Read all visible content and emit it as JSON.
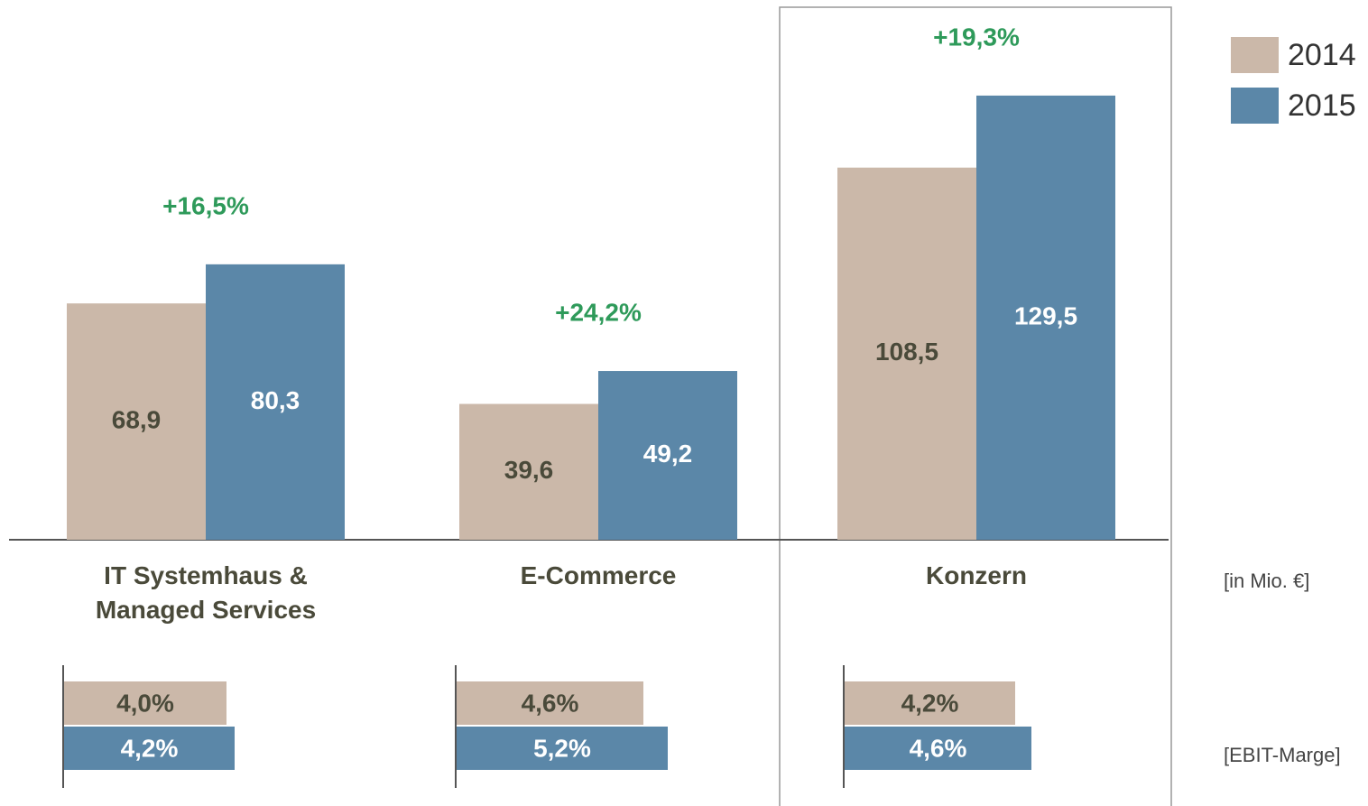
{
  "chart_data": [
    {
      "type": "bar",
      "categories": [
        "IT Systemhaus & Managed Services",
        "E-Commerce",
        "Konzern"
      ],
      "series": [
        {
          "name": "2014",
          "color": "#cbb8a9",
          "values": [
            68.9,
            39.6,
            108.5
          ],
          "value_labels": [
            "68,9",
            "39,6",
            "108,5"
          ]
        },
        {
          "name": "2015",
          "color": "#5b87a8",
          "values": [
            80.3,
            49.2,
            129.5
          ],
          "value_labels": [
            "80,3",
            "49,2",
            "129,5"
          ]
        }
      ],
      "annotations": [
        "+16,5%",
        "+24,2%",
        "+19,3%"
      ],
      "unit": "[in Mio. €]",
      "ylim": [
        0,
        140
      ]
    },
    {
      "type": "hbar",
      "series": [
        {
          "name": "2014",
          "color": "#cbb8a9",
          "values": [
            4.0,
            4.6,
            4.2
          ],
          "value_labels": [
            "4,0%",
            "4,6%",
            "4,2%"
          ]
        },
        {
          "name": "2015",
          "color": "#5b87a8",
          "values": [
            4.2,
            5.2,
            4.6
          ],
          "value_labels": [
            "4,2%",
            "5,2%",
            "4,6%"
          ]
        }
      ],
      "unit": "[EBIT-Marge]",
      "xlim": [
        0,
        6
      ]
    }
  ]
}
